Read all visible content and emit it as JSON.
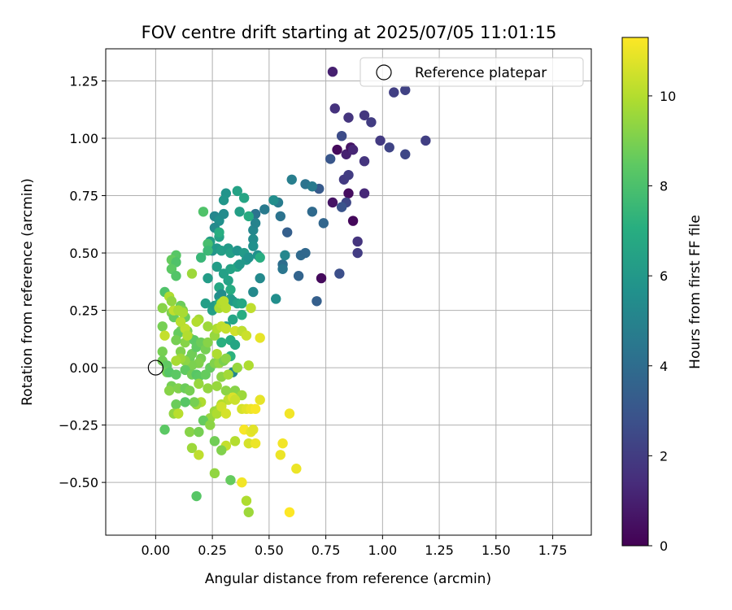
{
  "chart_data": {
    "type": "scatter",
    "title": "FOV centre drift starting at 2025/07/05 11:01:15",
    "xlabel": "Angular distance from reference (arcmin)",
    "ylabel": "Rotation from reference (arcmin)",
    "xlim": [
      -0.22,
      1.92
    ],
    "ylim": [
      -0.73,
      1.39
    ],
    "xticks": [
      0.0,
      0.25,
      0.5,
      0.75,
      1.0,
      1.25,
      1.5,
      1.75
    ],
    "xtick_labels": [
      "0.00",
      "0.25",
      "0.50",
      "0.75",
      "1.00",
      "1.25",
      "1.50",
      "1.75"
    ],
    "yticks": [
      -0.5,
      -0.25,
      0.0,
      0.25,
      0.5,
      0.75,
      1.0,
      1.25
    ],
    "ytick_labels": [
      "−0.50",
      "−0.25",
      "0.00",
      "0.25",
      "0.50",
      "0.75",
      "1.00",
      "1.25"
    ],
    "grid": true,
    "legend": {
      "position": "top-right",
      "entries": [
        "Reference platepar"
      ]
    },
    "reference_point": {
      "x": 0.0,
      "y": 0.0,
      "label": "Reference platepar"
    },
    "colorbar": {
      "label": "Hours from first FF file",
      "colormap": "viridis",
      "min": 0,
      "max": 11.3,
      "ticks": [
        0,
        2,
        4,
        6,
        8,
        10
      ],
      "tick_labels": [
        "0",
        "2",
        "4",
        "6",
        "8",
        "10"
      ]
    },
    "points": [
      [
        0.78,
        1.29,
        1.0
      ],
      [
        0.79,
        1.13,
        1.6
      ],
      [
        0.85,
        1.09,
        1.7
      ],
      [
        0.92,
        1.1,
        1.8
      ],
      [
        0.95,
        1.07,
        2.0
      ],
      [
        1.05,
        1.2,
        2.1
      ],
      [
        1.1,
        1.21,
        2.2
      ],
      [
        0.99,
        0.99,
        1.9
      ],
      [
        1.03,
        0.96,
        2.3
      ],
      [
        1.1,
        0.93,
        2.4
      ],
      [
        1.19,
        0.99,
        2.1
      ],
      [
        0.82,
        1.01,
        2.6
      ],
      [
        0.8,
        0.95,
        0.3
      ],
      [
        0.84,
        0.93,
        1.0
      ],
      [
        0.86,
        0.96,
        0.6
      ],
      [
        0.87,
        0.95,
        1.2
      ],
      [
        0.77,
        0.91,
        3.0
      ],
      [
        0.92,
        0.9,
        1.7
      ],
      [
        0.83,
        0.82,
        1.9
      ],
      [
        0.85,
        0.84,
        2.0
      ],
      [
        0.72,
        0.78,
        3.2
      ],
      [
        0.78,
        0.72,
        0.6
      ],
      [
        0.85,
        0.76,
        0.4
      ],
      [
        0.92,
        0.76,
        1.3
      ],
      [
        0.84,
        0.72,
        2.4
      ],
      [
        0.82,
        0.7,
        2.9
      ],
      [
        0.87,
        0.64,
        0.2
      ],
      [
        0.89,
        0.55,
        1.7
      ],
      [
        0.89,
        0.5,
        2.0
      ],
      [
        0.81,
        0.41,
        2.7
      ],
      [
        0.73,
        0.39,
        0.3
      ],
      [
        0.71,
        0.29,
        3.4
      ],
      [
        0.6,
        0.82,
        4.8
      ],
      [
        0.66,
        0.8,
        4.3
      ],
      [
        0.69,
        0.79,
        4.6
      ],
      [
        0.74,
        0.63,
        3.7
      ],
      [
        0.69,
        0.68,
        3.9
      ],
      [
        0.58,
        0.59,
        3.4
      ],
      [
        0.64,
        0.49,
        3.9
      ],
      [
        0.66,
        0.5,
        3.8
      ],
      [
        0.63,
        0.4,
        3.6
      ],
      [
        0.56,
        0.45,
        4.0
      ],
      [
        0.56,
        0.43,
        4.4
      ],
      [
        0.57,
        0.49,
        5.2
      ],
      [
        0.55,
        0.66,
        4.3
      ],
      [
        0.54,
        0.72,
        4.7
      ],
      [
        0.52,
        0.73,
        5.5
      ],
      [
        0.48,
        0.69,
        4.6
      ],
      [
        0.44,
        0.67,
        4.3
      ],
      [
        0.43,
        0.6,
        5.2
      ],
      [
        0.43,
        0.56,
        5.4
      ],
      [
        0.43,
        0.53,
        5.6
      ],
      [
        0.44,
        0.63,
        5.0
      ],
      [
        0.45,
        0.49,
        5.6
      ],
      [
        0.46,
        0.39,
        5.3
      ],
      [
        0.43,
        0.33,
        5.3
      ],
      [
        0.53,
        0.3,
        5.5
      ],
      [
        0.36,
        0.77,
        6.5
      ],
      [
        0.31,
        0.76,
        5.8
      ],
      [
        0.3,
        0.73,
        5.9
      ],
      [
        0.39,
        0.74,
        6.6
      ],
      [
        0.26,
        0.66,
        5.2
      ],
      [
        0.28,
        0.64,
        5.6
      ],
      [
        0.3,
        0.67,
        5.4
      ],
      [
        0.37,
        0.68,
        6.3
      ],
      [
        0.41,
        0.66,
        6.9
      ],
      [
        0.26,
        0.61,
        5.3
      ],
      [
        0.28,
        0.57,
        6.5
      ],
      [
        0.28,
        0.59,
        7.0
      ],
      [
        0.24,
        0.55,
        6.2
      ],
      [
        0.25,
        0.51,
        5.8
      ],
      [
        0.27,
        0.52,
        6.0
      ],
      [
        0.29,
        0.51,
        6.3
      ],
      [
        0.32,
        0.52,
        6.1
      ],
      [
        0.33,
        0.5,
        6.4
      ],
      [
        0.36,
        0.51,
        5.8
      ],
      [
        0.39,
        0.5,
        6.1
      ],
      [
        0.4,
        0.47,
        6.0
      ],
      [
        0.41,
        0.48,
        5.7
      ],
      [
        0.46,
        0.48,
        7.0
      ],
      [
        0.27,
        0.44,
        6.2
      ],
      [
        0.3,
        0.41,
        6.4
      ],
      [
        0.33,
        0.43,
        6.5
      ],
      [
        0.36,
        0.44,
        6.6
      ],
      [
        0.37,
        0.45,
        6.0
      ],
      [
        0.23,
        0.39,
        6.2
      ],
      [
        0.32,
        0.38,
        6.5
      ],
      [
        0.28,
        0.35,
        6.7
      ],
      [
        0.28,
        0.31,
        5.6
      ],
      [
        0.29,
        0.32,
        5.4
      ],
      [
        0.33,
        0.3,
        6.2
      ],
      [
        0.22,
        0.28,
        6.3
      ],
      [
        0.25,
        0.25,
        6.4
      ],
      [
        0.26,
        0.27,
        6.1
      ],
      [
        0.33,
        0.34,
        6.9
      ],
      [
        0.34,
        0.29,
        6.1
      ],
      [
        0.36,
        0.28,
        6.5
      ],
      [
        0.38,
        0.28,
        6.7
      ],
      [
        0.34,
        0.21,
        6.6
      ],
      [
        0.38,
        0.23,
        7.0
      ],
      [
        0.38,
        0.16,
        7.6
      ],
      [
        0.33,
        0.12,
        6.9
      ],
      [
        0.35,
        0.1,
        6.6
      ],
      [
        0.33,
        0.05,
        7.2
      ],
      [
        0.34,
        -0.02,
        5.3
      ],
      [
        0.29,
        0.11,
        7.1
      ],
      [
        0.31,
        0.18,
        6.4
      ],
      [
        0.28,
        0.28,
        6.9
      ],
      [
        0.21,
        0.68,
        8.1
      ],
      [
        0.23,
        0.54,
        7.9
      ],
      [
        0.23,
        0.51,
        7.6
      ],
      [
        0.2,
        0.48,
        7.5
      ],
      [
        0.09,
        0.49,
        8.3
      ],
      [
        0.07,
        0.47,
        8.6
      ],
      [
        0.09,
        0.46,
        8.1
      ],
      [
        0.07,
        0.43,
        8.4
      ],
      [
        0.09,
        0.4,
        8.2
      ],
      [
        0.04,
        0.33,
        8.1
      ],
      [
        0.16,
        0.41,
        9.6
      ],
      [
        0.11,
        0.27,
        8.7
      ],
      [
        0.12,
        0.25,
        9.0
      ],
      [
        0.07,
        0.24,
        9.1
      ],
      [
        0.03,
        0.26,
        9.2
      ],
      [
        0.13,
        0.22,
        8.7
      ],
      [
        0.08,
        0.22,
        8.6
      ],
      [
        0.03,
        0.18,
        8.9
      ],
      [
        0.06,
        0.31,
        9.9
      ],
      [
        0.11,
        0.16,
        8.9
      ],
      [
        0.1,
        0.15,
        8.6
      ],
      [
        0.14,
        0.16,
        9.0
      ],
      [
        0.15,
        0.13,
        9.3
      ],
      [
        0.13,
        0.11,
        9.2
      ],
      [
        0.17,
        0.12,
        8.4
      ],
      [
        0.09,
        0.12,
        8.9
      ],
      [
        0.11,
        0.07,
        9.1
      ],
      [
        0.15,
        0.04,
        8.7
      ],
      [
        0.16,
        0.06,
        8.8
      ],
      [
        0.18,
        0.09,
        8.5
      ],
      [
        0.2,
        0.11,
        8.7
      ],
      [
        0.22,
        0.08,
        8.9
      ],
      [
        0.2,
        0.04,
        8.9
      ],
      [
        0.19,
        0.02,
        9.1
      ],
      [
        0.16,
        0.01,
        9.0
      ],
      [
        0.13,
        0.03,
        9.3
      ],
      [
        0.11,
        0.04,
        9.6
      ],
      [
        0.09,
        0.03,
        9.8
      ],
      [
        0.03,
        0.07,
        8.9
      ],
      [
        0.03,
        0.03,
        8.8
      ],
      [
        0.05,
        0.01,
        8.5
      ],
      [
        0.05,
        -0.02,
        8.8
      ],
      [
        0.06,
        -0.02,
        8.3
      ],
      [
        0.09,
        -0.03,
        8.4
      ],
      [
        0.13,
        -0.01,
        8.5
      ],
      [
        0.16,
        -0.03,
        8.8
      ],
      [
        0.18,
        -0.03,
        8.3
      ],
      [
        0.19,
        -0.04,
        8.4
      ],
      [
        0.22,
        -0.03,
        8.6
      ],
      [
        0.24,
        0.0,
        8.6
      ],
      [
        0.26,
        0.02,
        9.1
      ],
      [
        0.28,
        0.02,
        9.4
      ],
      [
        0.3,
        0.03,
        9.0
      ],
      [
        0.31,
        0.04,
        9.3
      ],
      [
        0.29,
        -0.04,
        9.3
      ],
      [
        0.32,
        -0.03,
        9.7
      ],
      [
        0.36,
        0.0,
        9.5
      ],
      [
        0.41,
        0.01,
        9.9
      ],
      [
        0.27,
        0.06,
        9.9
      ],
      [
        0.23,
        0.11,
        9.2
      ],
      [
        0.26,
        0.14,
        9.5
      ],
      [
        0.27,
        0.17,
        9.9
      ],
      [
        0.29,
        0.18,
        10.2
      ],
      [
        0.31,
        0.17,
        10.3
      ],
      [
        0.35,
        0.16,
        10.5
      ],
      [
        0.38,
        0.16,
        10.2
      ],
      [
        0.4,
        0.14,
        10.4
      ],
      [
        0.23,
        0.18,
        9.6
      ],
      [
        0.19,
        0.21,
        9.7
      ],
      [
        0.18,
        0.2,
        10.0
      ],
      [
        0.13,
        0.17,
        10.2
      ],
      [
        0.11,
        0.2,
        10.1
      ],
      [
        0.14,
        0.14,
        10.0
      ],
      [
        0.08,
        0.25,
        10.2
      ],
      [
        0.1,
        0.25,
        9.8
      ],
      [
        0.12,
        0.24,
        9.8
      ],
      [
        0.28,
        0.26,
        9.8
      ],
      [
        0.29,
        0.28,
        10.0
      ],
      [
        0.3,
        0.29,
        10.1
      ],
      [
        0.31,
        0.26,
        10.1
      ],
      [
        0.42,
        0.26,
        10.2
      ],
      [
        0.46,
        0.13,
        10.9
      ],
      [
        0.07,
        0.29,
        9.4
      ],
      [
        0.04,
        0.14,
        10.3
      ],
      [
        0.07,
        -0.08,
        8.9
      ],
      [
        0.06,
        -0.1,
        9.2
      ],
      [
        0.1,
        -0.09,
        9.1
      ],
      [
        0.13,
        -0.09,
        8.7
      ],
      [
        0.15,
        -0.1,
        8.9
      ],
      [
        0.19,
        -0.07,
        9.5
      ],
      [
        0.23,
        -0.09,
        9.4
      ],
      [
        0.27,
        -0.08,
        9.5
      ],
      [
        0.31,
        -0.1,
        9.3
      ],
      [
        0.35,
        -0.1,
        9.2
      ],
      [
        0.38,
        -0.12,
        9.6
      ],
      [
        0.32,
        -0.14,
        10.2
      ],
      [
        0.34,
        -0.13,
        10.7
      ],
      [
        0.35,
        -0.14,
        10.4
      ],
      [
        0.29,
        -0.16,
        10.0
      ],
      [
        0.28,
        -0.18,
        9.8
      ],
      [
        0.26,
        -0.19,
        9.6
      ],
      [
        0.24,
        -0.22,
        9.5
      ],
      [
        0.21,
        -0.23,
        8.6
      ],
      [
        0.2,
        -0.15,
        9.9
      ],
      [
        0.18,
        -0.16,
        9.6
      ],
      [
        0.17,
        -0.15,
        8.9
      ],
      [
        0.13,
        -0.15,
        8.3
      ],
      [
        0.09,
        -0.16,
        8.7
      ],
      [
        0.08,
        -0.2,
        9.4
      ],
      [
        0.1,
        -0.2,
        10.1
      ],
      [
        0.04,
        -0.27,
        8.4
      ],
      [
        0.15,
        -0.28,
        9.2
      ],
      [
        0.19,
        -0.28,
        8.9
      ],
      [
        0.24,
        -0.25,
        9.3
      ],
      [
        0.27,
        -0.2,
        9.9
      ],
      [
        0.29,
        -0.17,
        10.5
      ],
      [
        0.31,
        -0.2,
        10.6
      ],
      [
        0.38,
        -0.18,
        10.6
      ],
      [
        0.4,
        -0.18,
        10.8
      ],
      [
        0.42,
        -0.18,
        11.0
      ],
      [
        0.44,
        -0.18,
        11.2
      ],
      [
        0.46,
        -0.14,
        10.9
      ],
      [
        0.39,
        -0.27,
        11.2
      ],
      [
        0.42,
        -0.28,
        10.9
      ],
      [
        0.43,
        -0.27,
        10.8
      ],
      [
        0.41,
        -0.33,
        10.6
      ],
      [
        0.44,
        -0.33,
        11.0
      ],
      [
        0.35,
        -0.32,
        10.0
      ],
      [
        0.31,
        -0.34,
        10.3
      ],
      [
        0.29,
        -0.36,
        9.1
      ],
      [
        0.26,
        -0.32,
        8.8
      ],
      [
        0.16,
        -0.35,
        9.6
      ],
      [
        0.19,
        -0.38,
        10.2
      ],
      [
        0.26,
        -0.46,
        9.4
      ],
      [
        0.33,
        -0.49,
        8.6
      ],
      [
        0.38,
        -0.5,
        11.1
      ],
      [
        0.4,
        -0.58,
        9.9
      ],
      [
        0.41,
        -0.63,
        9.6
      ],
      [
        0.18,
        -0.56,
        8.3
      ],
      [
        0.55,
        -0.38,
        11.0
      ],
      [
        0.56,
        -0.33,
        11.1
      ],
      [
        0.59,
        -0.2,
        11.1
      ],
      [
        0.62,
        -0.44,
        11.0
      ],
      [
        0.59,
        -0.63,
        11.3
      ]
    ]
  }
}
